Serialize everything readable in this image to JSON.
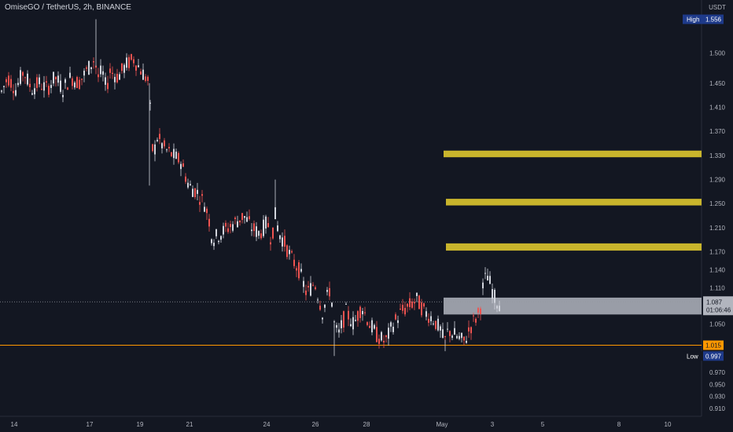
{
  "header": {
    "title": "OmiseGO / TetherUS, 2h, BINANCE",
    "currency": "USDT"
  },
  "colors": {
    "background": "#131722",
    "axis_text": "#b2b5be",
    "up": "#d1d4dc",
    "down": "#ef5350",
    "zone": "#c9b52c",
    "box": "#b2b5be",
    "low_line": "#ff9800",
    "label_bg": "#1e3a8a"
  },
  "chart_data": {
    "type": "candlestick",
    "ylim": [
      0.897,
      1.588
    ],
    "y_ticks": [
      "1.500",
      "1.450",
      "1.410",
      "1.370",
      "1.330",
      "1.290",
      "1.250",
      "1.210",
      "1.170",
      "1.140",
      "1.110",
      "1.087",
      "1.050",
      "1.015",
      "0.970",
      "0.950",
      "0.930",
      "0.910"
    ],
    "x_ticks": [
      "14",
      "17",
      "19",
      "21",
      "24",
      "26",
      "28",
      "May",
      "3",
      "5",
      "8",
      "10"
    ],
    "price_labels": [
      {
        "name": "High",
        "value": 1.556,
        "text": "1.556"
      },
      {
        "name": "Low",
        "value": 0.997,
        "text": "0.997"
      },
      {
        "name": "current",
        "value": 1.087,
        "text": "1.087",
        "countdown": "01:06:46"
      },
      {
        "name": "low_line",
        "value": 1.015,
        "text": "1.015"
      }
    ],
    "zones": [
      {
        "from": 1.327,
        "to": 1.338
      },
      {
        "from": 1.247,
        "to": 1.258
      },
      {
        "from": 1.172,
        "to": 1.184
      }
    ],
    "box": {
      "from": 1.066,
      "to": 1.094
    },
    "low_line": 1.015,
    "current_price": 1.087,
    "price_path": [
      [
        0,
        1.43
      ],
      [
        10,
        1.46
      ],
      [
        20,
        1.44
      ],
      [
        30,
        1.47
      ],
      [
        40,
        1.44
      ],
      [
        50,
        1.45
      ],
      [
        60,
        1.44
      ],
      [
        70,
        1.46
      ],
      [
        80,
        1.44
      ],
      [
        90,
        1.46
      ],
      [
        100,
        1.45
      ],
      [
        110,
        1.47
      ],
      [
        115,
        1.48
      ],
      [
        120,
        1.49
      ],
      [
        125,
        1.46
      ],
      [
        130,
        1.47
      ],
      [
        135,
        1.44
      ],
      [
        140,
        1.47
      ],
      [
        150,
        1.46
      ],
      [
        160,
        1.48
      ],
      [
        170,
        1.49
      ],
      [
        180,
        1.47
      ],
      [
        185,
        1.46
      ],
      [
        190,
        1.45
      ],
      [
        192,
        1.36
      ],
      [
        195,
        1.33
      ],
      [
        200,
        1.36
      ],
      [
        210,
        1.34
      ],
      [
        220,
        1.33
      ],
      [
        230,
        1.32
      ],
      [
        240,
        1.28
      ],
      [
        250,
        1.27
      ],
      [
        260,
        1.25
      ],
      [
        265,
        1.23
      ],
      [
        270,
        1.19
      ],
      [
        280,
        1.2
      ],
      [
        290,
        1.21
      ],
      [
        300,
        1.22
      ],
      [
        310,
        1.23
      ],
      [
        320,
        1.21
      ],
      [
        330,
        1.2
      ],
      [
        340,
        1.22
      ],
      [
        345,
        1.19
      ],
      [
        350,
        1.23
      ],
      [
        355,
        1.2
      ],
      [
        360,
        1.19
      ],
      [
        370,
        1.16
      ],
      [
        380,
        1.14
      ],
      [
        390,
        1.1
      ],
      [
        400,
        1.12
      ],
      [
        410,
        1.07
      ],
      [
        420,
        1.11
      ],
      [
        425,
        1.05
      ],
      [
        430,
        1.03
      ],
      [
        440,
        1.07
      ],
      [
        450,
        1.05
      ],
      [
        460,
        1.08
      ],
      [
        470,
        1.05
      ],
      [
        480,
        1.03
      ],
      [
        490,
        1.02
      ],
      [
        500,
        1.05
      ],
      [
        510,
        1.07
      ],
      [
        520,
        1.08
      ],
      [
        530,
        1.09
      ],
      [
        540,
        1.07
      ],
      [
        550,
        1.06
      ],
      [
        560,
        1.04
      ],
      [
        565,
        1.02
      ],
      [
        570,
        1.04
      ],
      [
        580,
        1.03
      ],
      [
        590,
        1.02
      ],
      [
        600,
        1.05
      ],
      [
        610,
        1.07
      ],
      [
        615,
        1.12
      ],
      [
        620,
        1.13
      ],
      [
        625,
        1.11
      ],
      [
        630,
        1.09
      ],
      [
        635,
        1.085
      ]
    ],
    "wick_spikes": [
      [
        122,
        1.556
      ],
      [
        190,
        1.28
      ],
      [
        350,
        1.29
      ],
      [
        425,
        0.997
      ],
      [
        566,
        1.005
      ]
    ]
  }
}
